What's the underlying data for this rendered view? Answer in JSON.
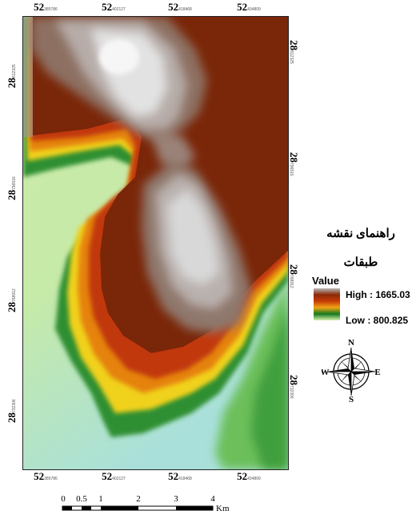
{
  "map": {
    "coord_labels": {
      "top": [
        {
          "deg": "52",
          "sub": "385786"
        },
        {
          "deg": "52",
          "sub": "402127"
        },
        {
          "deg": "52",
          "sub": "418468"
        },
        {
          "deg": "52",
          "sub": "434809"
        }
      ],
      "bottom": [
        {
          "deg": "52",
          "sub": "385786"
        },
        {
          "deg": "52",
          "sub": "402127"
        },
        {
          "deg": "52",
          "sub": "418468"
        },
        {
          "deg": "52",
          "sub": "434809"
        }
      ],
      "left": [
        {
          "deg": "28",
          "sub": "812325"
        },
        {
          "deg": "28",
          "sub": "796516"
        },
        {
          "deg": "28",
          "sub": "768912"
        },
        {
          "deg": "28",
          "sub": "732306"
        }
      ],
      "right": [
        {
          "deg": "28",
          "sub": "812325"
        },
        {
          "deg": "28",
          "sub": "796516"
        },
        {
          "deg": "28",
          "sub": "768912"
        },
        {
          "deg": "28",
          "sub": "732306"
        }
      ]
    }
  },
  "legend": {
    "title": "راهنمای نقشه",
    "subtitle": "طبقات",
    "value_label": "Value",
    "high_label": "High : 1665.03",
    "low_label": "Low : 800.825",
    "ramp_colors": [
      "#b8b8b8",
      "#8b2a08",
      "#c63a06",
      "#f0a414",
      "#147a1e",
      "#d8f0b0"
    ]
  },
  "compass": {
    "n": "N",
    "s": "S",
    "e": "E",
    "w": "W"
  },
  "scalebar": {
    "ticks": [
      "0",
      "0.5",
      "1",
      "2",
      "3",
      "4"
    ],
    "unit": "Km"
  },
  "colors": {
    "brown": "#7e2a08",
    "gray_high": "#d6d6d6",
    "orange": "#e8850c",
    "yellow": "#f2d21c",
    "green": "#2e9a3a",
    "pale": "#c8ebae",
    "cyan": "#b4e6e0"
  }
}
